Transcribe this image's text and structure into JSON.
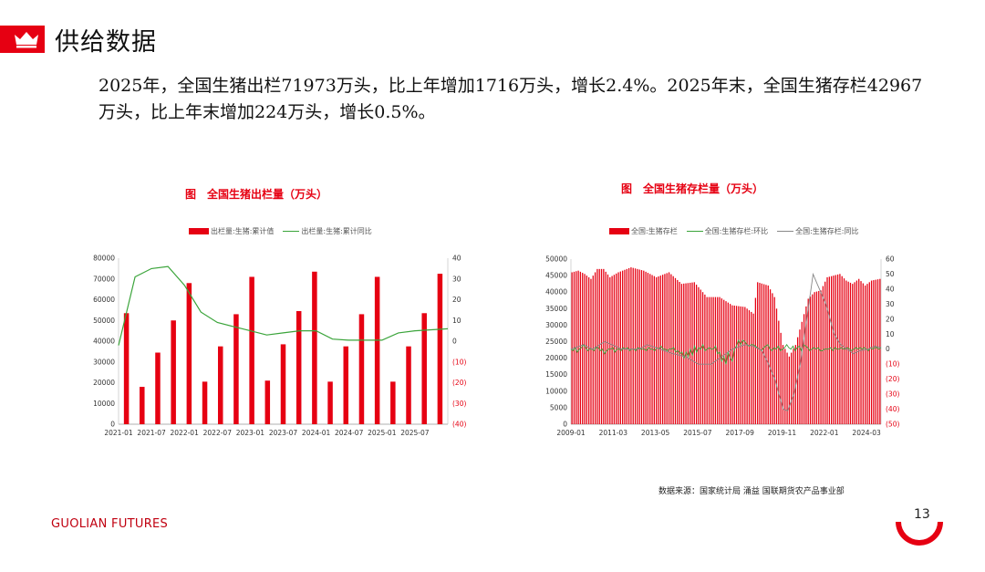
{
  "header": {
    "title": "供给数据",
    "summary": "2025年，全国生猪出栏71973万头，比上年增加1716万头，增长2.4%。2025年末，全国生猪存栏42967万头，比上年末增加224万头，增长0.5%。"
  },
  "colors": {
    "accent": "#e60012",
    "line_green": "#3aa43a",
    "line_gray": "#888888"
  },
  "chart_data": [
    {
      "type": "bar",
      "title": "图　全国生猪出栏量（万头）",
      "series": [
        {
          "name": "出栏量:生猪:累计值",
          "kind": "bar",
          "axis": "left",
          "values": [
            53500,
            18000,
            34500,
            50000,
            68000,
            20500,
            37500,
            53000,
            71000,
            21000,
            38500,
            54500,
            73500,
            20500,
            37500,
            53000,
            71000,
            20500,
            37500,
            53500,
            72500
          ]
        },
        {
          "name": "出栏量:生猪:累计同比",
          "kind": "line",
          "axis": "right",
          "values": [
            -2,
            31,
            35,
            36,
            27,
            14,
            9,
            7,
            5,
            3,
            4,
            5,
            5,
            1,
            0.5,
            0.5,
            0.5,
            4,
            5,
            5.5,
            6
          ]
        }
      ],
      "xticks": [
        "2021-01",
        "2021-07",
        "2022-01",
        "2022-07",
        "2023-01",
        "2023-07",
        "2024-01",
        "2024-07",
        "2025-01",
        "2025-07"
      ],
      "yticks_left": [
        "0",
        "10000",
        "20000",
        "30000",
        "40000",
        "50000",
        "60000",
        "70000",
        "80000"
      ],
      "yticks_right": [
        "40",
        "30",
        "20",
        "10",
        "0",
        "(10)",
        "(20)",
        "(30)",
        "(40)"
      ],
      "ylim_left": [
        0,
        80000
      ],
      "ylim_right": [
        -40,
        40
      ]
    },
    {
      "type": "bar",
      "title": "图　全国生猪存栏量（万头）",
      "series": [
        {
          "name": "全国:生猪存栏",
          "kind": "bar",
          "axis": "left",
          "anchors": [
            [
              0,
              46000
            ],
            [
              3,
              46500
            ],
            [
              6,
              45500
            ],
            [
              9,
              44000
            ],
            [
              12,
              47000
            ],
            [
              15,
              47000
            ],
            [
              18,
              44500
            ],
            [
              22,
              46000
            ],
            [
              28,
              47500
            ],
            [
              34,
              46500
            ],
            [
              40,
              44500
            ],
            [
              46,
              46000
            ],
            [
              52,
              42500
            ],
            [
              58,
              43000
            ],
            [
              64,
              38500
            ],
            [
              70,
              38500
            ],
            [
              76,
              36000
            ],
            [
              82,
              35500
            ],
            [
              86,
              33500
            ],
            [
              88,
              43000
            ],
            [
              93,
              42000
            ],
            [
              96,
              38500
            ],
            [
              97,
              35000
            ],
            [
              100,
              24000
            ],
            [
              103,
              20500
            ],
            [
              106,
              24000
            ],
            [
              109,
              31000
            ],
            [
              112,
              38000
            ],
            [
              115,
              40000
            ],
            [
              118,
              40500
            ],
            [
              121,
              44500
            ],
            [
              124,
              45000
            ],
            [
              127,
              45500
            ],
            [
              130,
              43500
            ],
            [
              133,
              42500
            ],
            [
              136,
              44000
            ],
            [
              139,
              42000
            ],
            [
              142,
              43500
            ],
            [
              146,
              44000
            ]
          ]
        },
        {
          "name": "全国:生猪存栏:环比",
          "kind": "line",
          "axis": "right",
          "values": [
            0,
            -1,
            1,
            -2,
            0,
            1,
            3,
            1,
            -1,
            0,
            0,
            -1,
            1,
            1,
            -1,
            0,
            -3,
            -1,
            0,
            0,
            1,
            -2,
            0,
            0,
            -1,
            1,
            0,
            1,
            -1,
            0,
            0,
            -1,
            1,
            0,
            0,
            0,
            -1,
            1,
            0,
            0,
            -1,
            1,
            0,
            2,
            0,
            0,
            -1,
            0,
            0,
            1,
            -2,
            -1,
            -3,
            -2,
            -6,
            -2,
            -5,
            0,
            -4,
            2,
            -2,
            1,
            0,
            3,
            -1,
            0,
            1,
            0,
            0,
            2,
            -3,
            -2,
            -8,
            -5,
            -10,
            -2,
            -6,
            -8,
            0,
            2,
            6,
            3,
            6,
            5,
            3,
            2,
            3,
            3,
            2,
            1,
            0,
            -1,
            1,
            2,
            3,
            0,
            -1,
            1,
            0,
            2,
            -1,
            0,
            1,
            3,
            1,
            0,
            2,
            -1,
            1,
            2,
            -1,
            3,
            2,
            1,
            -1,
            0,
            1,
            0,
            1,
            -1,
            -1,
            0,
            0,
            0,
            1,
            -1,
            1,
            0,
            0,
            1,
            0,
            0,
            1,
            0,
            -1,
            0,
            1,
            0,
            1,
            0,
            1,
            0,
            -1,
            1,
            0,
            1,
            1,
            0,
            1
          ]
        },
        {
          "name": "全国:生猪存栏:同比",
          "kind": "line",
          "axis": "right",
          "anchors": [
            [
              0,
              0
            ],
            [
              6,
              3
            ],
            [
              10,
              0
            ],
            [
              16,
              5
            ],
            [
              24,
              0
            ],
            [
              32,
              0
            ],
            [
              36,
              3
            ],
            [
              42,
              0
            ],
            [
              48,
              -3
            ],
            [
              54,
              -5
            ],
            [
              60,
              -10
            ],
            [
              66,
              -10
            ],
            [
              70,
              -6
            ],
            [
              76,
              0
            ],
            [
              82,
              3
            ],
            [
              86,
              2
            ],
            [
              90,
              -1
            ],
            [
              93,
              -10
            ],
            [
              96,
              -20
            ],
            [
              98,
              -30
            ],
            [
              100,
              -40
            ],
            [
              102,
              -41
            ],
            [
              105,
              -30
            ],
            [
              108,
              -10
            ],
            [
              111,
              20
            ],
            [
              114,
              50
            ],
            [
              117,
              40
            ],
            [
              120,
              30
            ],
            [
              122,
              20
            ],
            [
              124,
              10
            ],
            [
              127,
              3
            ],
            [
              130,
              0
            ],
            [
              133,
              -3
            ],
            [
              136,
              -1
            ],
            [
              140,
              0
            ],
            [
              143,
              2
            ],
            [
              146,
              1
            ]
          ]
        }
      ],
      "xticks": [
        "2009-01",
        "2011-03",
        "2013-05",
        "2015-07",
        "2017-09",
        "2019-11",
        "2022-01",
        "2024-03"
      ],
      "yticks_left": [
        "0",
        "5000",
        "10000",
        "15000",
        "20000",
        "25000",
        "30000",
        "35000",
        "40000",
        "45000",
        "50000"
      ],
      "yticks_right": [
        "60",
        "50",
        "40",
        "30",
        "20",
        "10",
        "0",
        "(10)",
        "(20)",
        "(30)",
        "(40)",
        "(50)"
      ],
      "ylim_left": [
        0,
        50000
      ],
      "ylim_right": [
        -50,
        60
      ]
    }
  ],
  "footer": {
    "source": "数据来源：国家统计局  涌益  国联期货农产品事业部",
    "brand": "GUOLIAN FUTURES",
    "page_number": "13"
  }
}
